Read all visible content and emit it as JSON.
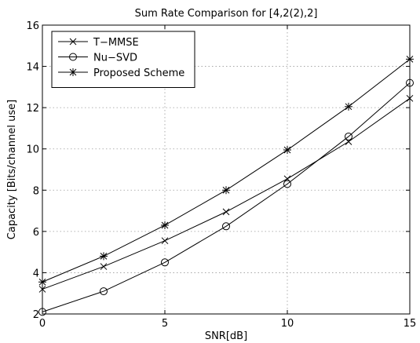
{
  "chart_data": {
    "type": "line",
    "title": "Sum Rate Comparison for [4,2(2),2]",
    "xlabel": "SNR[dB]",
    "ylabel": "Capacity [Bits/channel use]",
    "xlim": [
      0,
      15
    ],
    "ylim": [
      2,
      16
    ],
    "xticks": [
      0,
      5,
      10,
      15
    ],
    "yticks": [
      2,
      4,
      6,
      8,
      10,
      12,
      14,
      16
    ],
    "grid": true,
    "legend_position": "top-left",
    "x": [
      0,
      2.5,
      5,
      7.5,
      10,
      12.5,
      15
    ],
    "series": [
      {
        "name": "T−MMSE",
        "marker": "x",
        "values": [
          3.2,
          4.3,
          5.55,
          6.95,
          8.55,
          10.35,
          12.45
        ]
      },
      {
        "name": "Nu−SVD",
        "marker": "circle",
        "values": [
          2.1,
          3.1,
          4.5,
          6.25,
          8.3,
          10.6,
          13.2
        ]
      },
      {
        "name": "Proposed Scheme",
        "marker": "asterisk",
        "values": [
          3.55,
          4.8,
          6.3,
          8.0,
          9.95,
          12.05,
          14.35
        ]
      }
    ]
  }
}
